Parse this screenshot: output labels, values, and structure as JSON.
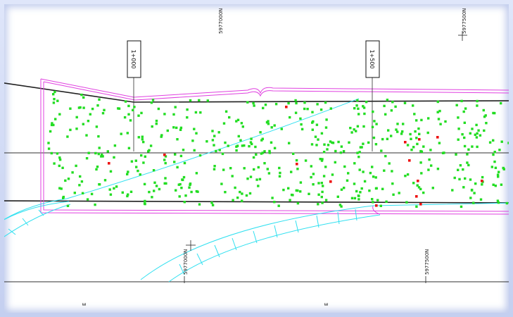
{
  "drawing": {
    "north_labels": [
      "5977000N",
      "5977500N",
      "5977000N",
      "5977500N"
    ],
    "station_labels": [
      "1+000",
      "1+500"
    ],
    "bottom_tick_labels": [
      "E",
      "E"
    ]
  },
  "colors": {
    "background": "#ffffff",
    "boundary": "#e040e0",
    "roadway": "#202020",
    "stream": "#30e0f0",
    "tree_ok": "#22dd22",
    "tree_flag": "#ee1111"
  }
}
